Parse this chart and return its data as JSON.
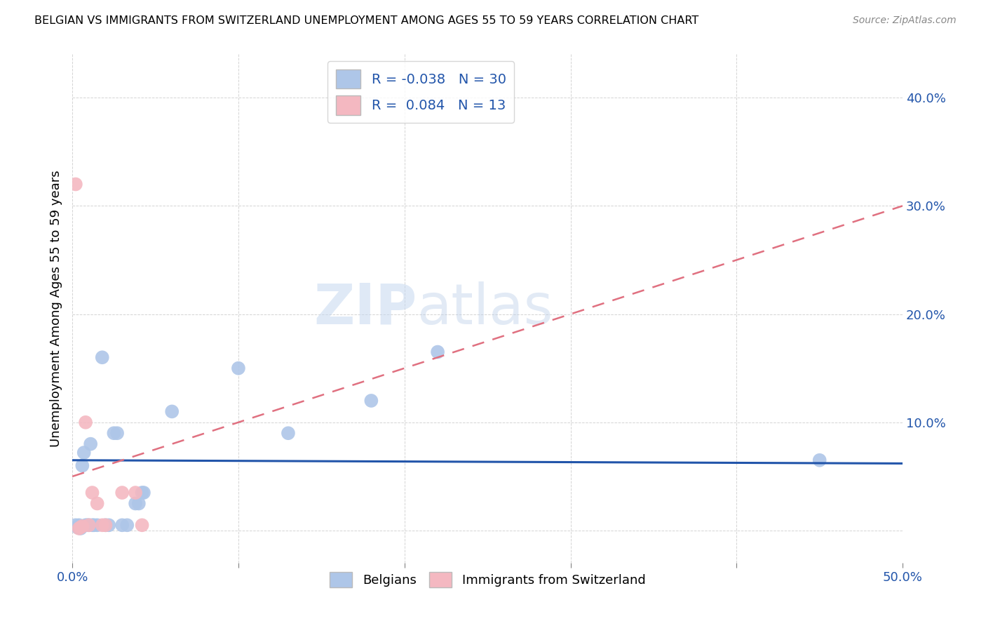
{
  "title": "BELGIAN VS IMMIGRANTS FROM SWITZERLAND UNEMPLOYMENT AMONG AGES 55 TO 59 YEARS CORRELATION CHART",
  "source": "Source: ZipAtlas.com",
  "ylabel": "Unemployment Among Ages 55 to 59 years",
  "xlim": [
    0.0,
    0.5
  ],
  "ylim": [
    -0.03,
    0.44
  ],
  "watermark_part1": "ZIP",
  "watermark_part2": "atlas",
  "belgians_R": -0.038,
  "belgians_N": 30,
  "swiss_R": 0.084,
  "swiss_N": 13,
  "belgians_color": "#aec6e8",
  "swiss_color": "#f4b8c1",
  "belgians_line_color": "#2255aa",
  "swiss_line_color": "#e07080",
  "belgians_x": [
    0.002,
    0.003,
    0.004,
    0.005,
    0.006,
    0.007,
    0.008,
    0.009,
    0.01,
    0.011,
    0.012,
    0.013,
    0.015,
    0.018,
    0.02,
    0.022,
    0.025,
    0.027,
    0.03,
    0.033,
    0.038,
    0.04,
    0.042,
    0.043,
    0.06,
    0.1,
    0.13,
    0.18,
    0.22,
    0.45
  ],
  "belgians_y": [
    0.005,
    0.003,
    0.005,
    0.002,
    0.06,
    0.072,
    0.005,
    0.005,
    0.005,
    0.08,
    0.005,
    0.005,
    0.005,
    0.16,
    0.005,
    0.005,
    0.09,
    0.09,
    0.005,
    0.005,
    0.025,
    0.025,
    0.035,
    0.035,
    0.11,
    0.15,
    0.09,
    0.12,
    0.165,
    0.065
  ],
  "swiss_x": [
    0.002,
    0.004,
    0.005,
    0.006,
    0.008,
    0.01,
    0.012,
    0.015,
    0.018,
    0.02,
    0.03,
    0.038,
    0.042
  ],
  "swiss_y": [
    0.32,
    0.002,
    0.003,
    0.004,
    0.1,
    0.005,
    0.035,
    0.025,
    0.005,
    0.005,
    0.035,
    0.035,
    0.005
  ],
  "background_color": "#ffffff",
  "grid_color": "#d0d0d0"
}
